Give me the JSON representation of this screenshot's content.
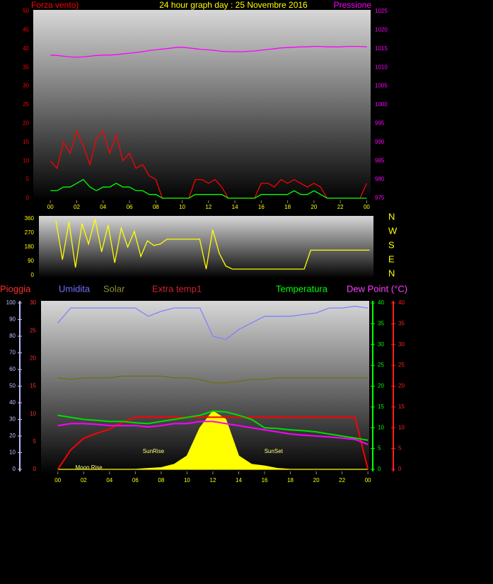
{
  "chart_data": [
    {
      "type": "line",
      "title": "24 hour graph day : 25 Novembre 2016",
      "ylabel": "Forza vento)",
      "y2label": "Pressione",
      "ycolor": "#ff0000",
      "y2color": "#ff00ff",
      "xcolor": "#ffff00",
      "xlim": [
        -1.3,
        24.3
      ],
      "xticks": [
        {
          "value": 0,
          "label": "00"
        },
        {
          "value": 2,
          "label": "02"
        },
        {
          "value": 4,
          "label": "04"
        },
        {
          "value": 6,
          "label": "06"
        },
        {
          "value": 8,
          "label": "08"
        },
        10,
        12,
        14,
        16,
        18,
        20,
        22,
        {
          "value": 24,
          "label": "00"
        }
      ],
      "ylim": [
        0,
        50
      ],
      "yticks": [
        0,
        5,
        10,
        15,
        20,
        25,
        30,
        35,
        40,
        45,
        50
      ],
      "y2lim": [
        975,
        1025
      ],
      "y2ticks": [
        975,
        980,
        985,
        990,
        995,
        1000,
        1005,
        1010,
        1015,
        1020,
        1025
      ],
      "x": [
        0,
        0.5,
        1,
        1.5,
        2,
        2.5,
        3,
        3.5,
        4,
        4.5,
        5,
        5.5,
        6,
        6.5,
        7,
        7.5,
        8,
        8.5,
        9,
        9.5,
        10,
        10.5,
        11,
        11.5,
        12,
        12.5,
        13,
        13.5,
        14,
        14.5,
        15,
        15.5,
        16,
        16.5,
        17,
        17.5,
        18,
        18.5,
        19,
        19.5,
        20,
        20.5,
        21,
        21.5,
        22,
        22.5,
        23,
        23.5,
        24
      ],
      "series": [
        {
          "color": "#ff0000",
          "values": [
            10,
            8,
            15,
            12,
            18,
            14,
            9,
            16,
            18,
            12,
            17,
            10,
            12,
            8,
            9,
            6,
            5,
            0,
            0,
            0,
            0,
            0,
            5,
            5,
            4,
            5,
            3,
            0,
            0,
            0,
            0,
            0,
            4,
            4,
            3,
            5,
            4,
            5,
            4,
            3,
            4,
            3,
            0,
            0,
            0,
            0,
            0,
            0,
            4
          ]
        },
        {
          "color": "#00ff00",
          "values": [
            2,
            2,
            3,
            3,
            4,
            5,
            3,
            2,
            3,
            3,
            4,
            3,
            3,
            2,
            2,
            1,
            1,
            0,
            0,
            0,
            0,
            0,
            1,
            1,
            1,
            1,
            1,
            0,
            0,
            0,
            0,
            0,
            1,
            1,
            1,
            1,
            1,
            2,
            1,
            1,
            2,
            1,
            0,
            0,
            0,
            0,
            0,
            0,
            0
          ]
        },
        {
          "color": "#ff00ff",
          "axis": "y2",
          "values": [
            1013.3,
            1013.2,
            1013,
            1012.8,
            1012.7,
            1012.8,
            1013,
            1013.2,
            1013.3,
            1013.3,
            1013.4,
            1013.6,
            1013.8,
            1014,
            1014.2,
            1014.5,
            1014.7,
            1014.9,
            1015.1,
            1015.3,
            1015.4,
            1015.2,
            1015,
            1014.8,
            1014.7,
            1014.5,
            1014.3,
            1014.2,
            1014.2,
            1014.2,
            1014.3,
            1014.4,
            1014.6,
            1014.8,
            1015,
            1015.2,
            1015.3,
            1015.4,
            1015.5,
            1015.5,
            1015.6,
            1015.6,
            1015.5,
            1015.5,
            1015.5,
            1015.6,
            1015.6,
            1015.6,
            1015.5
          ]
        }
      ]
    },
    {
      "type": "line",
      "ycolor": "#ffff00",
      "compass": [
        "N",
        "W",
        "S",
        "E",
        "N"
      ],
      "xlim": [
        -1.3,
        24.3
      ],
      "ylim": [
        0,
        360
      ],
      "yticks": [
        0,
        90,
        180,
        270,
        360
      ],
      "x": [
        0,
        0.5,
        1,
        1.5,
        2,
        2.5,
        3,
        3.5,
        4,
        4.5,
        5,
        5.5,
        6,
        6.5,
        7,
        7.5,
        8,
        8.5,
        9,
        9.5,
        10,
        10.5,
        11,
        11.5,
        12,
        12.5,
        13,
        13.5,
        14,
        14.5,
        15,
        15.5,
        16,
        16.5,
        17,
        17.5,
        18,
        18.5,
        19,
        19.5,
        20,
        20.5,
        21,
        21.5,
        22,
        22.5,
        23,
        23.5,
        24
      ],
      "series": [
        {
          "color": "#ffff00",
          "values": [
            350,
            100,
            340,
            50,
            330,
            200,
            360,
            150,
            320,
            80,
            300,
            180,
            280,
            120,
            220,
            190,
            200,
            230,
            230,
            230,
            230,
            230,
            230,
            40,
            290,
            140,
            60,
            40,
            40,
            40,
            40,
            40,
            40,
            40,
            40,
            40,
            40,
            40,
            40,
            160,
            160,
            160,
            160,
            160,
            160,
            160,
            160,
            160,
            160
          ]
        }
      ]
    },
    {
      "type": "line",
      "header_labels": [
        {
          "text": "Pioggia",
          "color": "#ff3030"
        },
        {
          "text": "Umidita",
          "color": "#7070ff"
        },
        {
          "text": "Solar",
          "color": "#909030"
        },
        {
          "text": "Extra temp1",
          "color": "#d02030"
        },
        {
          "text": "Temperatura",
          "color": "#00ff00"
        },
        {
          "text": "Dew Point (°C)",
          "color": "#ff40ff"
        }
      ],
      "annotations": [
        {
          "text": "Moon Rise",
          "x": 2.4
        },
        {
          "text": "SunRise",
          "x": 7.4
        },
        {
          "text": "SunSet",
          "x": 16.7
        }
      ],
      "ycolor": "#c0c0ff",
      "y2color": "#00ff00",
      "y3color": "#ff3030",
      "y4color": "#ff2020",
      "xcolor": "#ffff00",
      "xlim": [
        -1.3,
        24.1
      ],
      "xticks": [
        {
          "value": 0,
          "label": "00"
        },
        {
          "value": 2,
          "label": "02"
        },
        {
          "value": 4,
          "label": "04"
        },
        {
          "value": 6,
          "label": "06"
        },
        {
          "value": 8,
          "label": "08"
        },
        10,
        12,
        14,
        16,
        18,
        20,
        22,
        {
          "value": 24,
          "label": "00"
        }
      ],
      "ylim": [
        0,
        100
      ],
      "yticks": [
        0,
        10,
        20,
        30,
        40,
        50,
        60,
        70,
        80,
        90,
        100
      ],
      "y2lim": [
        0,
        40
      ],
      "y2ticks": [
        0,
        5,
        10,
        15,
        20,
        25,
        30,
        35,
        40
      ],
      "y3lim": [
        0,
        30
      ],
      "y3ticks": [
        0,
        5,
        10,
        15,
        20,
        25,
        30
      ],
      "y4lim": [
        0,
        40
      ],
      "y4ticks": [
        0,
        5,
        10,
        15,
        20,
        25,
        30,
        35,
        40
      ],
      "x": [
        0,
        1,
        2,
        3,
        4,
        5,
        6,
        7,
        8,
        9,
        10,
        11,
        12,
        13,
        14,
        15,
        16,
        17,
        18,
        19,
        20,
        21,
        22,
        23,
        24
      ],
      "series": [
        {
          "color": "#ffff00",
          "fill": true,
          "values": [
            0,
            0,
            0,
            0,
            0,
            0,
            0,
            0.5,
            1,
            3,
            8,
            25,
            35,
            30,
            8,
            3,
            2,
            0.5,
            0,
            0,
            0,
            0,
            0,
            0,
            0
          ]
        },
        {
          "color": "#8080ff",
          "values": [
            88,
            97,
            97,
            97,
            97,
            97,
            97,
            92,
            95,
            97,
            97,
            97,
            80,
            78,
            84,
            88,
            92,
            92,
            92,
            93,
            94,
            97,
            97,
            98,
            97
          ]
        },
        {
          "color": "#707010",
          "values": [
            55,
            54,
            55,
            55,
            55,
            56,
            56,
            56,
            56,
            55,
            55,
            54,
            52,
            52,
            53,
            54,
            54,
            55,
            55,
            55,
            55,
            55,
            55,
            55,
            55
          ]
        },
        {
          "color": "#ff0000",
          "axis": "y3",
          "values": [
            0,
            3.5,
            5.6,
            6.5,
            7.2,
            8.5,
            9.4,
            9.4,
            9.4,
            9.4,
            9.4,
            9.4,
            9.4,
            9.4,
            9.4,
            9.4,
            9.4,
            9.4,
            9.4,
            9.4,
            9.4,
            9.4,
            9.4,
            9.4,
            0
          ]
        },
        {
          "color": "#00dd00",
          "axis": "y2",
          "values": [
            13,
            12.5,
            12,
            11.8,
            11.5,
            11.5,
            11.2,
            11,
            11.5,
            12,
            12.5,
            13,
            14,
            13.8,
            13,
            12,
            10,
            9.8,
            9.5,
            9.3,
            9,
            8.5,
            8,
            7.5,
            7
          ]
        },
        {
          "color": "#ff00ff",
          "axis": "y4",
          "values": [
            10.5,
            11,
            11,
            10.8,
            10.5,
            10.5,
            10.5,
            10.2,
            10.5,
            11,
            11,
            11.5,
            11.5,
            11,
            10.5,
            10,
            9.5,
            9,
            8.5,
            8.2,
            8,
            7.8,
            7.5,
            7.2,
            6
          ]
        }
      ]
    }
  ]
}
